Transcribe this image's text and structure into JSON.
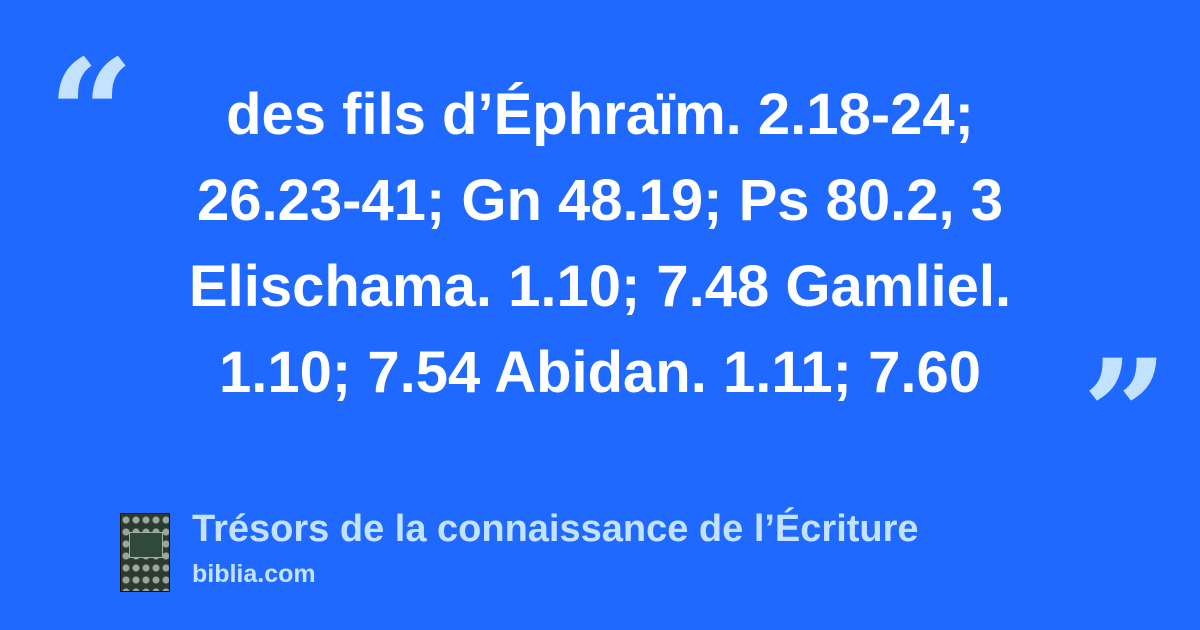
{
  "quote": {
    "lines": [
      "des fils d’Éphraïm. 2.18-24;",
      "26.23-41; Gn 48.19; Ps 80.2, 3",
      "Elischama. 1.10; 7.48 Gamliel.",
      "1.10; 7.54 Abidan. 1.11; 7.60"
    ],
    "open_mark": "“",
    "close_mark": "”"
  },
  "source": {
    "title": "Trésors de la connaissance de l’Écriture",
    "site": "biblia.com",
    "cover_icon": "book-cover-icon"
  },
  "colors": {
    "background": "#1f69fe",
    "accent": "#c3e2ff",
    "text": "#ffffff"
  }
}
